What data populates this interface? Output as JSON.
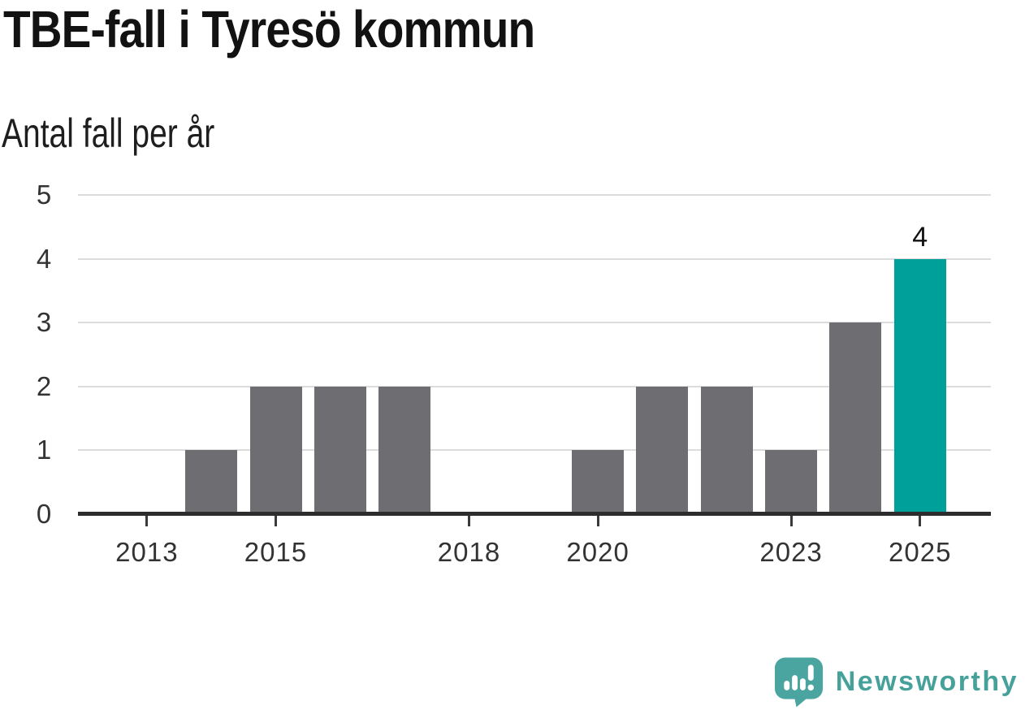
{
  "chart_data": {
    "type": "bar",
    "title": "TBE-fall i Tyresö kommun",
    "subtitle": "Antal fall per år",
    "categories": [
      2013,
      2014,
      2015,
      2016,
      2017,
      2018,
      2019,
      2020,
      2021,
      2022,
      2023,
      2024,
      2025
    ],
    "values": [
      0,
      1,
      2,
      2,
      2,
      0,
      0,
      1,
      2,
      2,
      1,
      3,
      4
    ],
    "highlight_x": 2025,
    "value_labels": [
      {
        "x": 2025,
        "text": "4"
      }
    ],
    "x_ticks": [
      2013,
      2015,
      2018,
      2020,
      2023,
      2025
    ],
    "y_ticks": [
      0,
      1,
      2,
      3,
      4,
      5
    ],
    "ylim": [
      0,
      5
    ],
    "xlim": [
      2011.93,
      2026.1
    ],
    "bar_width_years": 0.8,
    "grid": "horizontal",
    "legend": "none",
    "colors": {
      "bar": "#6d6d72",
      "highlight": "#00a09a",
      "gridline": "#dcdcdc",
      "axis_line": "#2d2d2d",
      "tick": "#3a3a3a",
      "axis_label": "#333333",
      "value_label": "#111111"
    }
  },
  "footer": {
    "logo_text": "Newsworthy",
    "logo_color": "#47a19b",
    "logo_icon": "speech-bubble-bar-chart-icon"
  }
}
